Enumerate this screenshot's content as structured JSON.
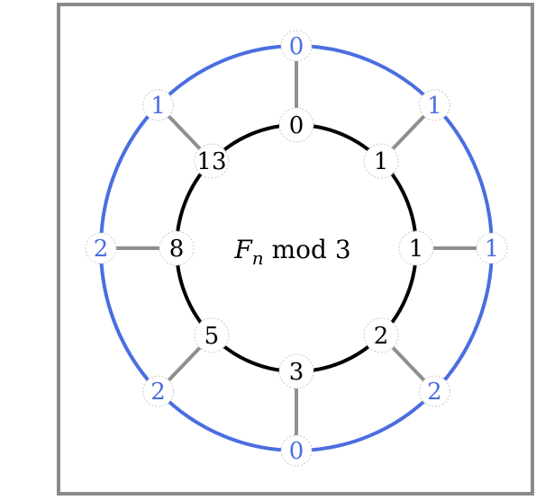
{
  "diagram": {
    "title_var": "F",
    "title_sub": "n",
    "title_rest": " mod 3",
    "inner_values": [
      "0",
      "1",
      "1",
      "2",
      "3",
      "5",
      "8",
      "13"
    ],
    "outer_values": [
      "0",
      "1",
      "1",
      "2",
      "0",
      "2",
      "2",
      "1"
    ],
    "colors": {
      "frame": "#8a8a8a",
      "outer_ring": "#4a6ee0",
      "outer_text": "#4a6ee0",
      "inner_ring": "#000000",
      "spoke": "#8f8f8f",
      "node_border": "#c8c8c8"
    }
  }
}
